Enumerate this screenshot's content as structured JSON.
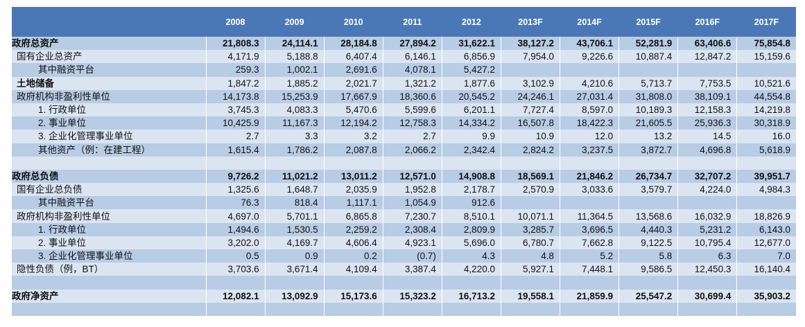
{
  "columns": [
    "2008",
    "2009",
    "2010",
    "2011",
    "2012",
    "2013F",
    "2014F",
    "2015F",
    "2016F",
    "2017F"
  ],
  "rows": [
    {
      "label": "政府总资产",
      "indent": 0,
      "bold": true,
      "values": [
        "21,808.3",
        "24,114.1",
        "28,184.8",
        "27,894.2",
        "31,622.1",
        "38,127.2",
        "43,706.1",
        "52,281.9",
        "63,406.6",
        "75,854.8"
      ]
    },
    {
      "label": "国有企业总资产",
      "indent": 1,
      "values": [
        "4,171.9",
        "5,188.8",
        "6,407.4",
        "6,146.1",
        "6,856.9",
        "7,954.0",
        "9,226.6",
        "10,887.4",
        "12,847.2",
        "15,159.6"
      ]
    },
    {
      "label": "其中融资平台",
      "indent": 2,
      "values": [
        "259.3",
        "1,002.1",
        "2,691.6",
        "4,078.1",
        "5,427.2",
        "",
        "",
        "",
        "",
        ""
      ]
    },
    {
      "label": "土地储备",
      "indent": 1,
      "labelBold": true,
      "values": [
        "1,847.2",
        "1,885.2",
        "2,021.7",
        "1,321.2",
        "1,877.6",
        "3,102.9",
        "4,210.6",
        "5,713.7",
        "7,753.5",
        "10,521.6"
      ]
    },
    {
      "label": "政府机构非盈利性单位",
      "indent": 1,
      "values": [
        "14,173.8",
        "15,253.9",
        "17,667.9",
        "18,360.6",
        "20,545.2",
        "24,246.1",
        "27,031.4",
        "31,808.0",
        "38,109.1",
        "44,554.8"
      ]
    },
    {
      "label": "1. 行政单位",
      "indent": 2,
      "values": [
        "3,745.3",
        "4,083.3",
        "5,470.6",
        "5,599.6",
        "6,201.1",
        "7,727.4",
        "8,597.0",
        "10,189.3",
        "12,158.3",
        "14,219.8"
      ]
    },
    {
      "label": "2. 事业单位",
      "indent": 2,
      "values": [
        "10,425.9",
        "11,167.3",
        "12,194.2",
        "12,758.3",
        "14,334.2",
        "16,507.8",
        "18,422.3",
        "21,605.5",
        "25,936.3",
        "30,318.9"
      ]
    },
    {
      "label": "3. 企业化管理事业单位",
      "indent": 2,
      "values": [
        "2.7",
        "3.3",
        "3.2",
        "2.7",
        "9.9",
        "10.9",
        "12.0",
        "13.2",
        "14.5",
        "16.0"
      ]
    },
    {
      "label": "其他资产（例：在建工程）",
      "indent": 2,
      "values": [
        "1,615.4",
        "1,786.2",
        "2,087.8",
        "2,066.2",
        "2,342.4",
        "2,824.2",
        "3,237.5",
        "3,872.7",
        "4,696.8",
        "5,618.9"
      ]
    },
    {
      "label": "",
      "indent": 0,
      "values": [
        "",
        "",
        "",
        "",
        "",
        "",
        "",
        "",
        "",
        ""
      ]
    },
    {
      "label": "政府总负债",
      "indent": 0,
      "bold": true,
      "values": [
        "9,726.2",
        "11,021.2",
        "13,011.2",
        "12,571.0",
        "14,908.8",
        "18,569.1",
        "21,846.2",
        "26,734.7",
        "32,707.2",
        "39,951.7"
      ]
    },
    {
      "label": "国有企业总负债",
      "indent": 1,
      "values": [
        "1,325.6",
        "1,648.7",
        "2,035.9",
        "1,952.8",
        "2,178.7",
        "2,570.9",
        "3,033.6",
        "3,579.7",
        "4,224.0",
        "4,984.3"
      ]
    },
    {
      "label": "其中融资平台",
      "indent": 2,
      "values": [
        "76.3",
        "818.4",
        "1,117.1",
        "1,054.9",
        "912.6",
        "",
        "",
        "",
        "",
        ""
      ]
    },
    {
      "label": "政府机构非盈利性单位",
      "indent": 1,
      "values": [
        "4,697.0",
        "5,701.1",
        "6,865.8",
        "7,230.7",
        "8,510.1",
        "10,071.1",
        "11,364.5",
        "13,568.6",
        "16,032.9",
        "18,826.9"
      ]
    },
    {
      "label": "1. 行政单位",
      "indent": 2,
      "values": [
        "1,494.6",
        "1,530.5",
        "2,259.2",
        "2,308.4",
        "2,809.9",
        "3,285.7",
        "3,696.5",
        "4,440.3",
        "5,231.2",
        "6,143.0"
      ]
    },
    {
      "label": "2. 事业单位",
      "indent": 2,
      "values": [
        "3,202.0",
        "4,169.7",
        "4,606.4",
        "4,923.1",
        "5,696.0",
        "6,780.7",
        "7,662.8",
        "9,122.5",
        "10,795.4",
        "12,677.0"
      ]
    },
    {
      "label": "3. 企业化管理事业单位",
      "indent": 2,
      "values": [
        "0.5",
        "0.9",
        "0.2",
        "(0.7)",
        "4.3",
        "4.8",
        "5.2",
        "5.8",
        "6.3",
        "7.0"
      ]
    },
    {
      "label": "隐性负债（例，BT）",
      "indent": 1,
      "values": [
        "3,703.6",
        "3,671.4",
        "4,109.4",
        "3,387.4",
        "4,220.0",
        "5,927.1",
        "7,448.1",
        "9,586.5",
        "12,450.3",
        "16,140.4"
      ]
    },
    {
      "label": "",
      "indent": 0,
      "values": [
        "",
        "",
        "",
        "",
        "",
        "",
        "",
        "",
        "",
        ""
      ]
    },
    {
      "label": "政府净资产",
      "indent": 0,
      "bold": true,
      "values": [
        "12,082.1",
        "13,092.9",
        "15,173.6",
        "15,323.2",
        "16,713.2",
        "19,558.1",
        "21,859.9",
        "25,547.2",
        "30,699.4",
        "35,903.2"
      ]
    },
    {
      "label": "",
      "indent": 0,
      "values": [
        "",
        "",
        "",
        "",
        "",
        "",
        "",
        "",
        "",
        ""
      ]
    }
  ]
}
